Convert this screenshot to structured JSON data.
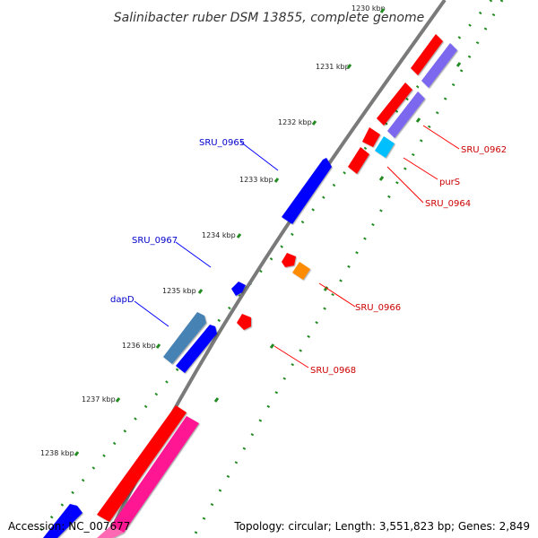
{
  "title": "Salinibacter ruber DSM 13855, complete genome",
  "footer": {
    "accession": "Accession: NC_007677",
    "topology": "Topology: circular; Length: 3,551,823 bp; Genes: 2,849"
  },
  "ticks": [
    "1230 kbp",
    "1231 kbp",
    "1232 kbp",
    "1233 kbp",
    "1234 kbp",
    "1235 kbp",
    "1236 kbp",
    "1237 kbp",
    "1238 kbp"
  ],
  "labels": {
    "sru0962": "SRU_0962",
    "purs": "purS",
    "sru0964": "SRU_0964",
    "sru0965": "SRU_0965",
    "sru0966": "SRU_0966",
    "sru0967": "SRU_0967",
    "dapd": "dapD",
    "sru0968": "SRU_0968"
  },
  "colors": {
    "forward": "#0000ff",
    "reverse": "#ff0000",
    "purple": "#7b68ee",
    "cyan": "#00bfff",
    "orange": "#ff8c00",
    "steel": "#4682b4",
    "pink": "#ff1493",
    "backbone": "#808080",
    "ticks": "#228b22"
  }
}
